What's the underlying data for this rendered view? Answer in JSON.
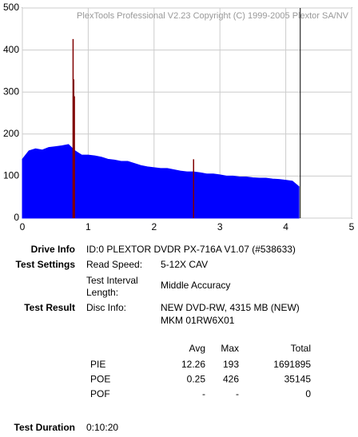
{
  "chart_data": {
    "type": "area",
    "title": "PlexTools Professional V2.23 Copyright (C) 1999-2005 Plextor SA/NV",
    "series": [
      {
        "color": "#0000ff",
        "x": [
          0,
          0.1,
          0.2,
          0.3,
          0.4,
          0.5,
          0.6,
          0.7,
          0.8,
          0.9,
          1,
          1.1,
          1.2,
          1.3,
          1.4,
          1.5,
          1.6,
          1.7,
          1.8,
          1.9,
          2,
          2.1,
          2.2,
          2.3,
          2.4,
          2.5,
          2.6,
          2.7,
          2.8,
          2.9,
          3,
          3.1,
          3.2,
          3.3,
          3.4,
          3.5,
          3.6,
          3.7,
          3.8,
          3.9,
          4,
          4.1,
          4.2
        ],
        "values": [
          140,
          160,
          165,
          162,
          168,
          170,
          172,
          175,
          160,
          150,
          150,
          148,
          145,
          140,
          138,
          135,
          135,
          130,
          125,
          122,
          120,
          118,
          118,
          115,
          112,
          110,
          110,
          108,
          105,
          105,
          103,
          100,
          100,
          98,
          98,
          96,
          95,
          95,
          93,
          92,
          90,
          88,
          75
        ]
      },
      {
        "color": "#800000",
        "x": [
          0.77,
          0.78,
          0.79,
          2.6
        ],
        "values": [
          426,
          330,
          290,
          140
        ]
      }
    ],
    "end_marker": 4.22,
    "xlim": [
      0,
      5
    ],
    "xticks": [
      0,
      1,
      2,
      3,
      4,
      5
    ],
    "ylim": [
      0,
      500
    ],
    "yticks": [
      0,
      100,
      200,
      300,
      400,
      500
    ],
    "grid": true
  },
  "info": [
    {
      "label": "Drive Info",
      "value": "ID:0 PLEXTOR DVDR PX-716A V1.07 (#538633)"
    },
    {
      "label": "Test Settings",
      "field": "Read Speed:",
      "value": "5-12X CAV",
      "field2": "Test Interval",
      "field2b": "Length:",
      "value2": "Middle Accuracy"
    },
    {
      "label": "Test Result",
      "field": "Disc Info:",
      "value": "NEW DVD-RW, 4315 MB (NEW)",
      "value2": "MKM 01RW6X01"
    },
    {
      "label": "Test Duration",
      "value": "0:10:20"
    }
  ],
  "table": {
    "header": [
      "Avg",
      "Max",
      "Total"
    ],
    "rows": [
      [
        "PIE",
        12.26,
        193,
        1691895
      ],
      [
        "POE",
        0.25,
        426,
        35145
      ],
      [
        "POF",
        "-",
        "-",
        0
      ]
    ]
  }
}
